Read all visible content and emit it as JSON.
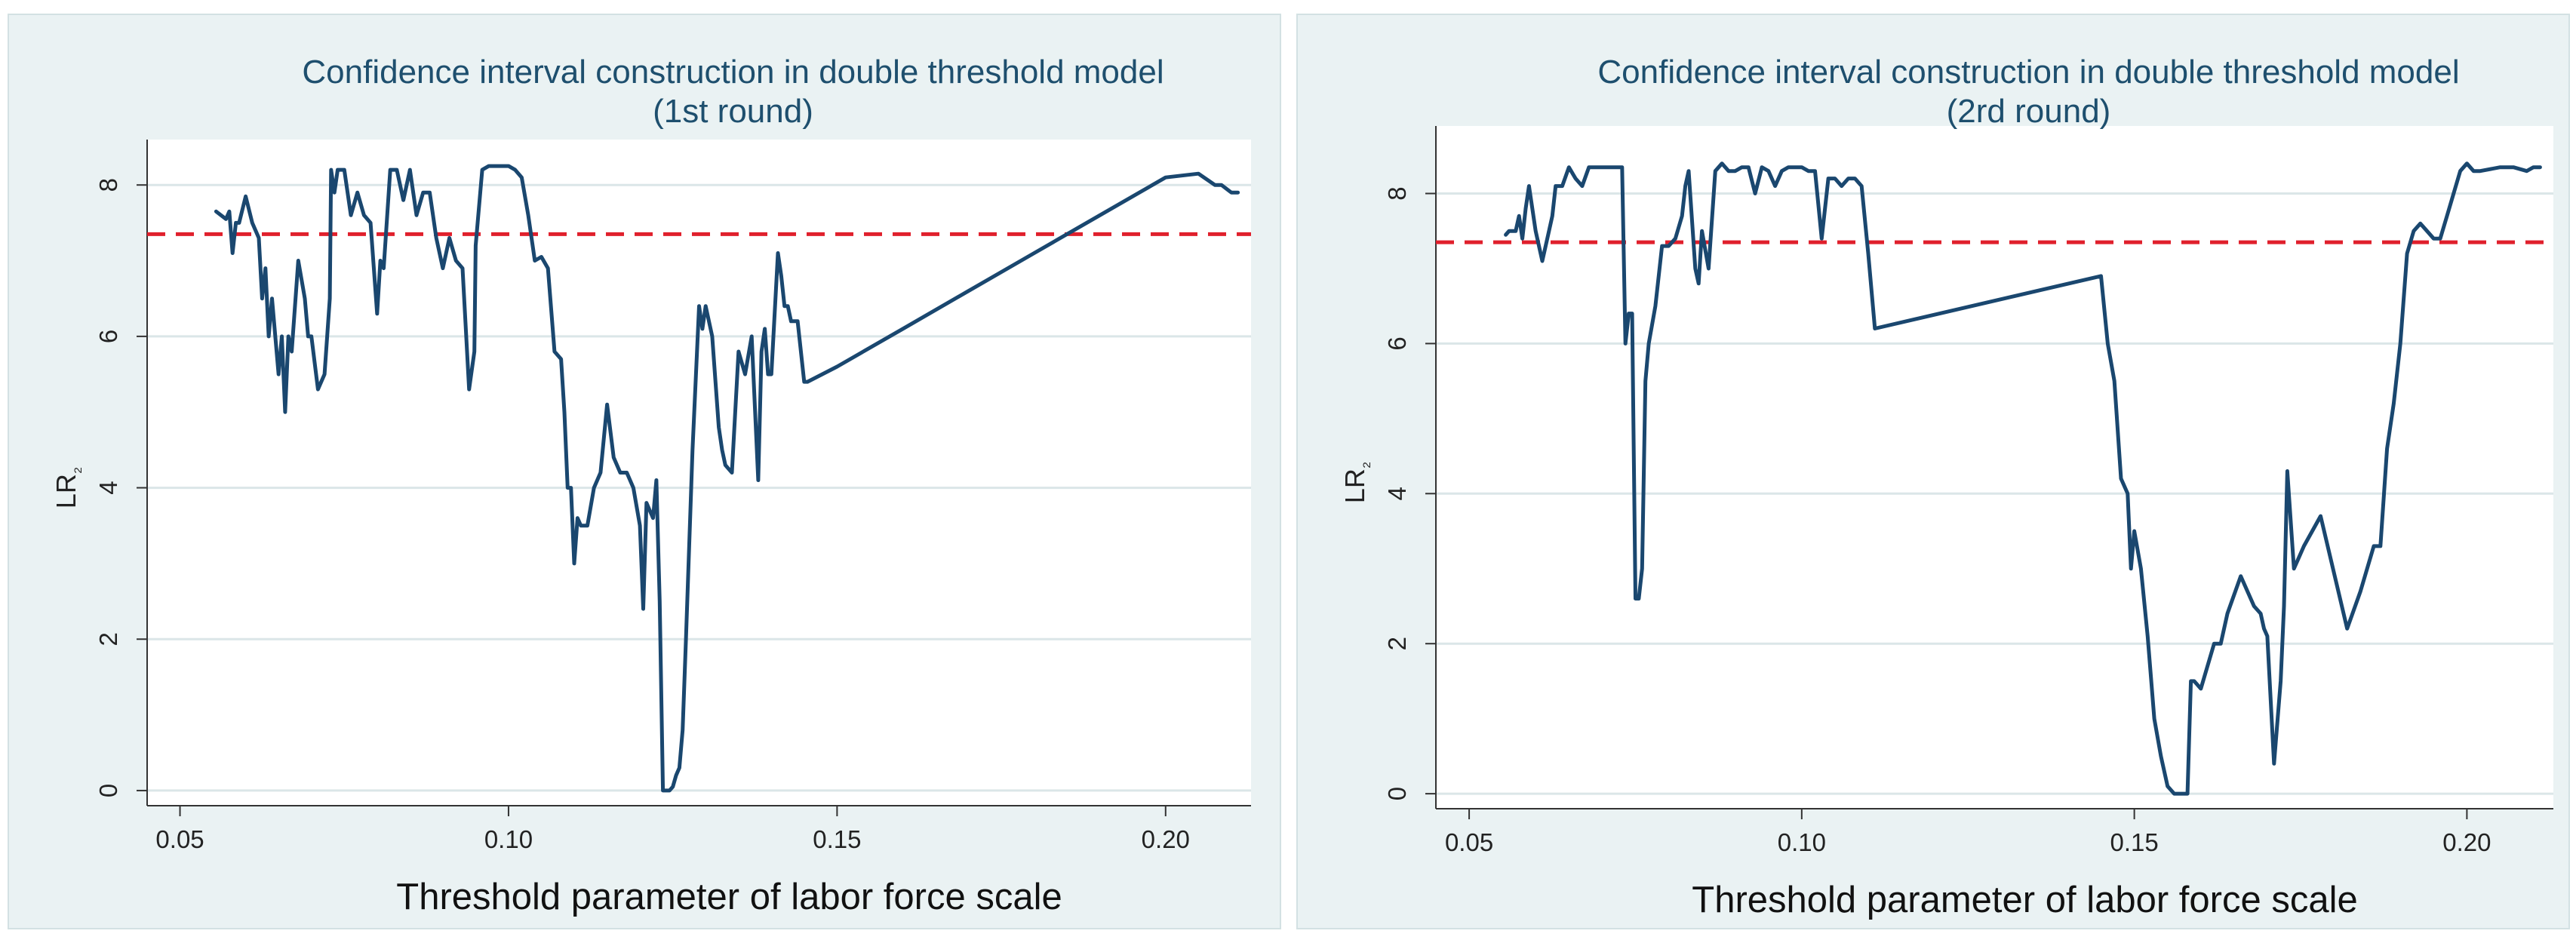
{
  "colors": {
    "panel_bg": "#eaf2f3",
    "plot_bg": "#ffffff",
    "line": "#1a476f",
    "threshold_line": "#e0202c",
    "grid": "#dbe6e8"
  },
  "chart_data": [
    {
      "type": "line",
      "title": "Confidence interval construction in double threshold model",
      "subtitle": "(1st round)",
      "xlabel": "Threshold parameter of labor force scale",
      "ylabel": "LR",
      "ylabel_subscript": "₂",
      "xlim": [
        0.045,
        0.213
      ],
      "ylim": [
        -0.2,
        8.6
      ],
      "xticks": [
        0.05,
        0.1,
        0.15,
        0.2
      ],
      "xtick_labels": [
        "0.05",
        "0.10",
        "0.15",
        "0.20"
      ],
      "yticks": [
        0,
        2,
        4,
        6,
        8
      ],
      "ytick_labels": [
        "0",
        "2",
        "4",
        "6",
        "8"
      ],
      "threshold_value": 7.35,
      "series": [
        {
          "name": "LR",
          "x": [
            0.0555,
            0.057,
            0.0575,
            0.058,
            0.0585,
            0.059,
            0.06,
            0.061,
            0.062,
            0.0625,
            0.063,
            0.0635,
            0.064,
            0.065,
            0.0655,
            0.066,
            0.0665,
            0.067,
            0.068,
            0.069,
            0.0695,
            0.07,
            0.071,
            0.072,
            0.0728,
            0.073,
            0.0735,
            0.074,
            0.075,
            0.076,
            0.077,
            0.078,
            0.079,
            0.08,
            0.0805,
            0.081,
            0.082,
            0.083,
            0.084,
            0.085,
            0.086,
            0.087,
            0.088,
            0.089,
            0.09,
            0.091,
            0.092,
            0.093,
            0.094,
            0.0948,
            0.095,
            0.096,
            0.097,
            0.098,
            0.099,
            0.1,
            0.101,
            0.102,
            0.103,
            0.104,
            0.105,
            0.106,
            0.107,
            0.108,
            0.1085,
            0.109,
            0.1095,
            0.11,
            0.1105,
            0.111,
            0.112,
            0.113,
            0.114,
            0.115,
            0.116,
            0.117,
            0.118,
            0.119,
            0.12,
            0.1205,
            0.121,
            0.122,
            0.1225,
            0.123,
            0.1235,
            0.1245,
            0.125,
            0.1255,
            0.126,
            0.1265,
            0.127,
            0.128,
            0.129,
            0.1295,
            0.13,
            0.131,
            0.132,
            0.1325,
            0.133,
            0.134,
            0.135,
            0.136,
            0.137,
            0.138,
            0.1385,
            0.139,
            0.1395,
            0.14,
            0.141,
            0.1415,
            0.142,
            0.1425,
            0.143,
            0.144,
            0.145,
            0.1455,
            0.15,
            0.16,
            0.17,
            0.18,
            0.19,
            0.2,
            0.205,
            0.2075,
            0.2085,
            0.21,
            0.211
          ],
          "y": [
            7.65,
            7.55,
            7.65,
            7.1,
            7.5,
            7.5,
            7.85,
            7.5,
            7.3,
            6.5,
            6.9,
            6.0,
            6.5,
            5.5,
            6.0,
            5.0,
            6.0,
            5.8,
            7.0,
            6.5,
            6.0,
            6.0,
            5.3,
            5.5,
            6.5,
            8.2,
            7.9,
            8.2,
            8.2,
            7.6,
            7.9,
            7.6,
            7.5,
            6.3,
            7.0,
            6.9,
            8.2,
            8.2,
            7.8,
            8.2,
            7.6,
            7.9,
            7.9,
            7.3,
            6.9,
            7.3,
            7.0,
            6.9,
            5.3,
            5.8,
            7.2,
            8.2,
            8.25,
            8.25,
            8.25,
            8.25,
            8.2,
            8.1,
            7.6,
            7.0,
            7.05,
            6.9,
            5.8,
            5.7,
            5.0,
            4.0,
            4.0,
            3.0,
            3.6,
            3.5,
            3.5,
            4.0,
            4.2,
            5.1,
            4.4,
            4.2,
            4.2,
            4.0,
            3.5,
            2.4,
            3.8,
            3.6,
            4.1,
            2.5,
            0.0,
            0.0,
            0.05,
            0.2,
            0.3,
            0.8,
            2.0,
            4.5,
            6.4,
            6.1,
            6.4,
            6.0,
            4.8,
            4.5,
            4.3,
            4.2,
            5.8,
            5.5,
            6.0,
            4.1,
            5.8,
            6.1,
            5.5,
            5.5,
            7.1,
            6.8,
            6.4,
            6.4,
            6.2,
            6.2,
            5.4,
            5.4,
            5.6,
            6.1,
            6.6,
            7.1,
            7.6,
            8.1,
            8.15,
            8.0,
            8.0,
            7.9,
            7.9
          ]
        }
      ]
    },
    {
      "type": "line",
      "title": "Confidence interval construction in double threshold model",
      "subtitle": "(2rd round)",
      "xlabel": "Threshold parameter of labor force scale",
      "ylabel": "LR",
      "ylabel_subscript": "₂",
      "xlim": [
        0.045,
        0.213
      ],
      "ylim": [
        -0.2,
        8.9
      ],
      "xticks": [
        0.05,
        0.1,
        0.15,
        0.2
      ],
      "xtick_labels": [
        "0.05",
        "0.10",
        "0.15",
        "0.20"
      ],
      "yticks": [
        0,
        2,
        4,
        6,
        8
      ],
      "ytick_labels": [
        "0",
        "2",
        "4",
        "6",
        "8"
      ],
      "threshold_value": 7.35,
      "series": [
        {
          "name": "LR",
          "x": [
            0.0555,
            0.056,
            0.057,
            0.0575,
            0.058,
            0.0585,
            0.059,
            0.06,
            0.0605,
            0.061,
            0.062,
            0.0625,
            0.063,
            0.064,
            0.065,
            0.066,
            0.067,
            0.068,
            0.069,
            0.07,
            0.071,
            0.072,
            0.073,
            0.0735,
            0.074,
            0.0745,
            0.075,
            0.0755,
            0.076,
            0.0765,
            0.077,
            0.078,
            0.079,
            0.08,
            0.081,
            0.082,
            0.0825,
            0.083,
            0.084,
            0.0845,
            0.085,
            0.086,
            0.087,
            0.088,
            0.089,
            0.09,
            0.091,
            0.092,
            0.093,
            0.094,
            0.095,
            0.096,
            0.097,
            0.098,
            0.099,
            0.1,
            0.101,
            0.102,
            0.103,
            0.104,
            0.105,
            0.106,
            0.107,
            0.108,
            0.109,
            0.11,
            0.111,
            0.145,
            0.146,
            0.147,
            0.148,
            0.149,
            0.1495,
            0.15,
            0.151,
            0.152,
            0.153,
            0.154,
            0.155,
            0.156,
            0.157,
            0.158,
            0.1585,
            0.159,
            0.16,
            0.162,
            0.163,
            0.164,
            0.166,
            0.167,
            0.168,
            0.169,
            0.1695,
            0.17,
            0.171,
            0.172,
            0.1725,
            0.173,
            0.174,
            0.175,
            0.1755,
            0.178,
            0.182,
            0.184,
            0.186,
            0.187,
            0.188,
            0.189,
            0.19,
            0.191,
            0.192,
            0.193,
            0.194,
            0.195,
            0.196,
            0.197,
            0.198,
            0.199,
            0.2,
            0.201,
            0.202,
            0.205,
            0.207,
            0.209,
            0.21,
            0.211
          ],
          "y": [
            7.45,
            7.5,
            7.5,
            7.7,
            7.4,
            7.8,
            8.1,
            7.5,
            7.3,
            7.1,
            7.5,
            7.7,
            8.1,
            8.1,
            8.35,
            8.2,
            8.1,
            8.35,
            8.35,
            8.35,
            8.35,
            8.35,
            8.35,
            6.0,
            6.4,
            6.4,
            2.6,
            2.6,
            3.0,
            5.5,
            6.0,
            6.5,
            7.3,
            7.3,
            7.4,
            7.7,
            8.1,
            8.3,
            7.0,
            6.8,
            7.5,
            7.0,
            8.3,
            8.4,
            8.3,
            8.3,
            8.35,
            8.35,
            8.0,
            8.35,
            8.3,
            8.1,
            8.3,
            8.35,
            8.35,
            8.35,
            8.3,
            8.3,
            7.4,
            8.2,
            8.2,
            8.1,
            8.2,
            8.2,
            8.1,
            7.2,
            6.2,
            6.9,
            6.0,
            5.5,
            4.2,
            4.0,
            3.0,
            3.5,
            3.0,
            2.1,
            1.0,
            0.5,
            0.1,
            0.0,
            0.0,
            0.0,
            1.5,
            1.5,
            1.4,
            2.0,
            2.0,
            2.4,
            2.9,
            2.7,
            2.5,
            2.4,
            2.2,
            2.1,
            0.4,
            1.5,
            2.5,
            4.3,
            3.0,
            3.2,
            3.3,
            3.7,
            2.2,
            2.7,
            3.3,
            3.3,
            4.6,
            5.2,
            6.0,
            7.2,
            7.5,
            7.6,
            7.5,
            7.4,
            7.4,
            7.7,
            8.0,
            8.3,
            8.4,
            8.3,
            8.3,
            8.35,
            8.35,
            8.3,
            8.35,
            8.35
          ]
        }
      ]
    }
  ]
}
